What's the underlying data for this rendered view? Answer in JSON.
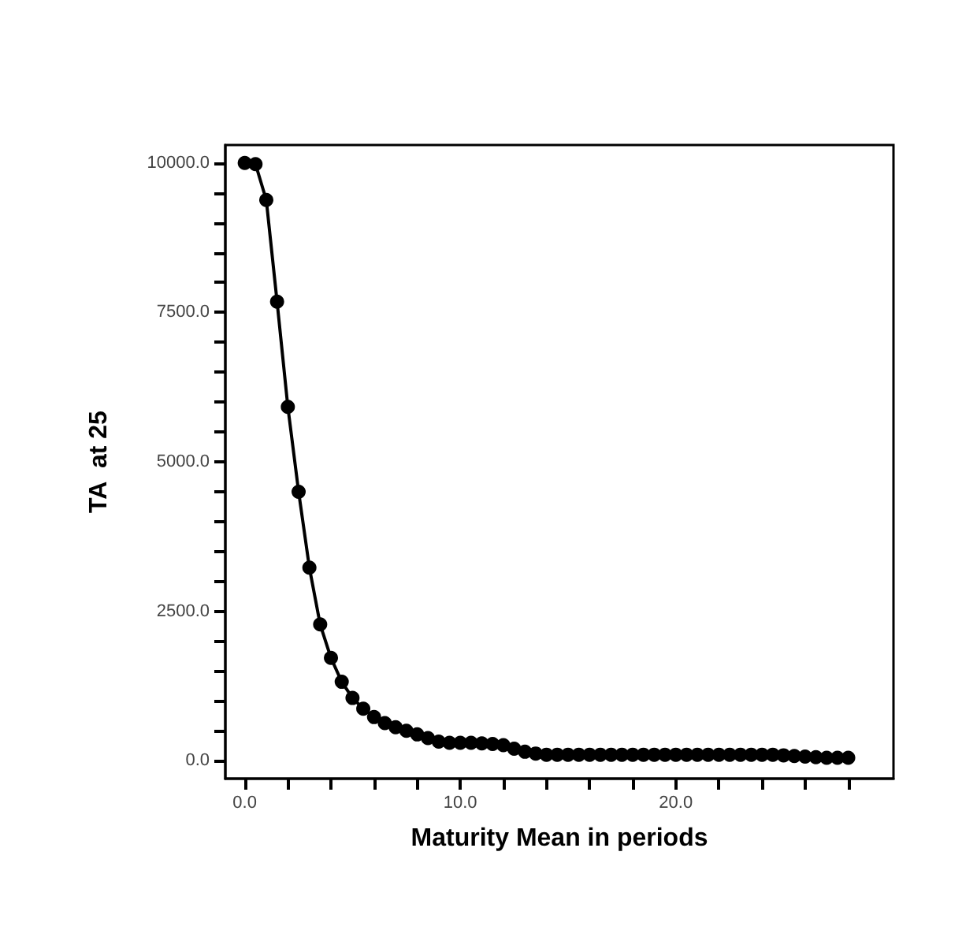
{
  "chart_data": {
    "type": "line",
    "xlabel": "Maturity Mean in periods",
    "ylabel": "TA  at 25",
    "x": [
      0,
      0.5,
      1,
      1.5,
      2,
      2.5,
      3,
      3.5,
      4,
      4.5,
      5,
      5.5,
      6,
      6.5,
      7,
      7.5,
      8,
      8.5,
      9,
      9.5,
      10,
      10.5,
      11,
      11.5,
      12,
      12.5,
      13,
      13.5,
      14,
      14.5,
      15,
      15.5,
      16,
      16.5,
      17,
      17.5,
      18,
      18.5,
      19,
      19.5,
      20,
      20.5,
      21,
      21.5,
      22,
      22.5,
      23,
      23.5,
      24,
      24.5,
      25,
      25.5,
      26,
      26.5,
      27,
      27.5,
      28
    ],
    "series": [
      {
        "color": "#000000",
        "values": [
          10000,
          9980,
          9380,
          7680,
          5920,
          4500,
          3230,
          2280,
          1720,
          1320,
          1050,
          870,
          730,
          630,
          560,
          500,
          440,
          380,
          320,
          300,
          300,
          300,
          290,
          280,
          260,
          200,
          150,
          120,
          100,
          100,
          100,
          100,
          100,
          100,
          100,
          100,
          100,
          100,
          100,
          100,
          100,
          100,
          100,
          100,
          100,
          100,
          100,
          100,
          100,
          100,
          90,
          80,
          70,
          60,
          50,
          50,
          50
        ]
      }
    ],
    "xlim": [
      -0.9,
      30.1
    ],
    "ylim": [
      -300,
      10300
    ],
    "xticks": [
      {
        "value": 0,
        "label": "0.0"
      },
      {
        "value": 2,
        "label": null
      },
      {
        "value": 4,
        "label": null
      },
      {
        "value": 6,
        "label": null
      },
      {
        "value": 8,
        "label": null
      },
      {
        "value": 10,
        "label": "10.0"
      },
      {
        "value": 12,
        "label": null
      },
      {
        "value": 14,
        "label": null
      },
      {
        "value": 16,
        "label": null
      },
      {
        "value": 18,
        "label": null
      },
      {
        "value": 20,
        "label": "20.0"
      },
      {
        "value": 22,
        "label": null
      },
      {
        "value": 24,
        "label": null
      },
      {
        "value": 26,
        "label": null
      },
      {
        "value": 28,
        "label": null
      }
    ],
    "yticks": [
      {
        "value": 0,
        "label": "0.0"
      },
      {
        "value": 500,
        "label": null
      },
      {
        "value": 1000,
        "label": null
      },
      {
        "value": 1500,
        "label": null
      },
      {
        "value": 2000,
        "label": null
      },
      {
        "value": 2500,
        "label": "2500.0"
      },
      {
        "value": 3000,
        "label": null
      },
      {
        "value": 3500,
        "label": null
      },
      {
        "value": 4000,
        "label": null
      },
      {
        "value": 4500,
        "label": null
      },
      {
        "value": 5000,
        "label": "5000.0"
      },
      {
        "value": 5500,
        "label": null
      },
      {
        "value": 6000,
        "label": null
      },
      {
        "value": 6500,
        "label": null
      },
      {
        "value": 7000,
        "label": null
      },
      {
        "value": 7500,
        "label": "7500.0"
      },
      {
        "value": 8000,
        "label": null
      },
      {
        "value": 8500,
        "label": null
      },
      {
        "value": 9000,
        "label": null
      },
      {
        "value": 9500,
        "label": null
      },
      {
        "value": 10000,
        "label": "10000.0"
      }
    ],
    "grid": false,
    "marker": "circle",
    "line_style": "solid"
  }
}
